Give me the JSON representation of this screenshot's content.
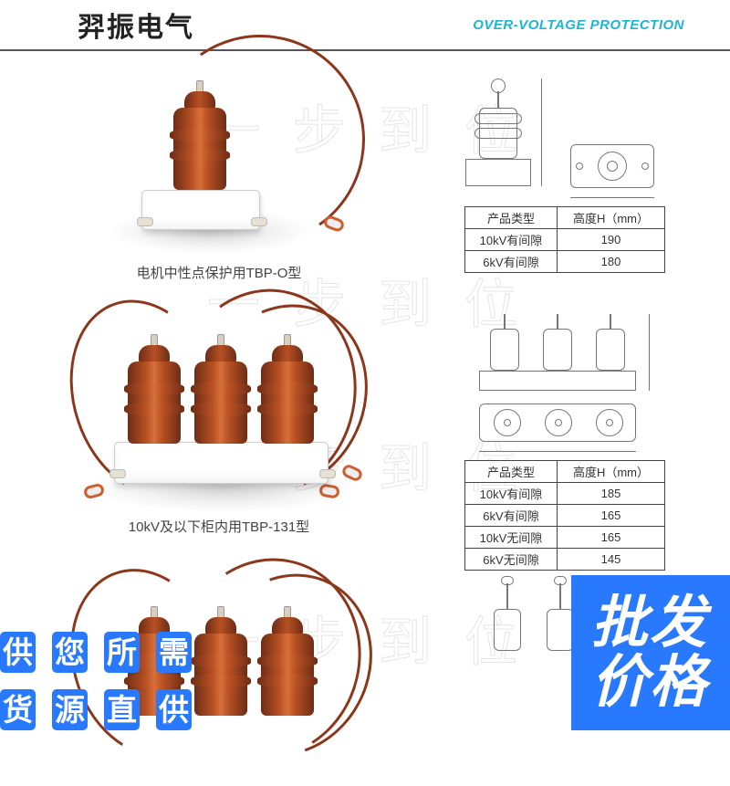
{
  "header": {
    "cn": "羿振电气",
    "en": "OVER-VOLTAGE PROTECTION"
  },
  "captions": {
    "row1": "电机中性点保护用TBP-O型",
    "row2": "10kV及以下柜内用TBP-131型"
  },
  "schematics": {
    "table1": {
      "columns": [
        "产品类型",
        "高度H（mm）"
      ],
      "rows": [
        [
          "10kV有间隙",
          "190"
        ],
        [
          "6kV有间隙",
          "180"
        ]
      ]
    },
    "table2": {
      "columns": [
        "产品类型",
        "高度H（mm）"
      ],
      "rows": [
        [
          "10kV有间隙",
          "185"
        ],
        [
          "6kV有间隙",
          "165"
        ],
        [
          "10kV无间隙",
          "165"
        ],
        [
          "6kV无间隙",
          "145"
        ]
      ]
    }
  },
  "watermark": "一步到位",
  "overlays": {
    "left": [
      [
        "供",
        "您",
        "所",
        "需"
      ],
      [
        "货",
        "源",
        "直",
        "供"
      ]
    ],
    "right": [
      "批发",
      "价格"
    ]
  },
  "colors": {
    "accent": "#2879fe",
    "teal": "#1eb5d1",
    "insulator": "#b75023",
    "wire": "#8c371c"
  }
}
